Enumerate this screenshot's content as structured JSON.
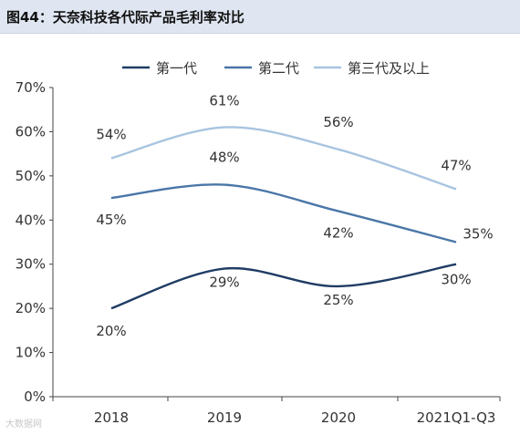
{
  "figure": {
    "title": "图44：天奈科技各代际产品毛利率对比"
  },
  "watermark": "大数据网",
  "chart_data": {
    "type": "line",
    "categories": [
      "2018",
      "2019",
      "2020",
      "2021Q1-Q3"
    ],
    "ylim": [
      0,
      70
    ],
    "yticks": [
      0,
      10,
      20,
      30,
      40,
      50,
      60,
      70
    ],
    "ytick_labels": [
      "0%",
      "10%",
      "20%",
      "30%",
      "40%",
      "50%",
      "60%",
      "70%"
    ],
    "legend_position": "top",
    "grid": false,
    "series": [
      {
        "name": "第一代",
        "values": [
          20,
          29,
          25,
          30
        ],
        "labels": [
          "20%",
          "29%",
          "25%",
          "30%"
        ],
        "color": "#1f3c64"
      },
      {
        "name": "第二代",
        "values": [
          45,
          48,
          42,
          35
        ],
        "labels": [
          "45%",
          "48%",
          "42%",
          "35%"
        ],
        "color": "#4a76a8"
      },
      {
        "name": "第三代及以上",
        "values": [
          54,
          61,
          56,
          47
        ],
        "labels": [
          "54%",
          "61%",
          "56%",
          "47%"
        ],
        "color": "#a8c4e0"
      }
    ]
  }
}
